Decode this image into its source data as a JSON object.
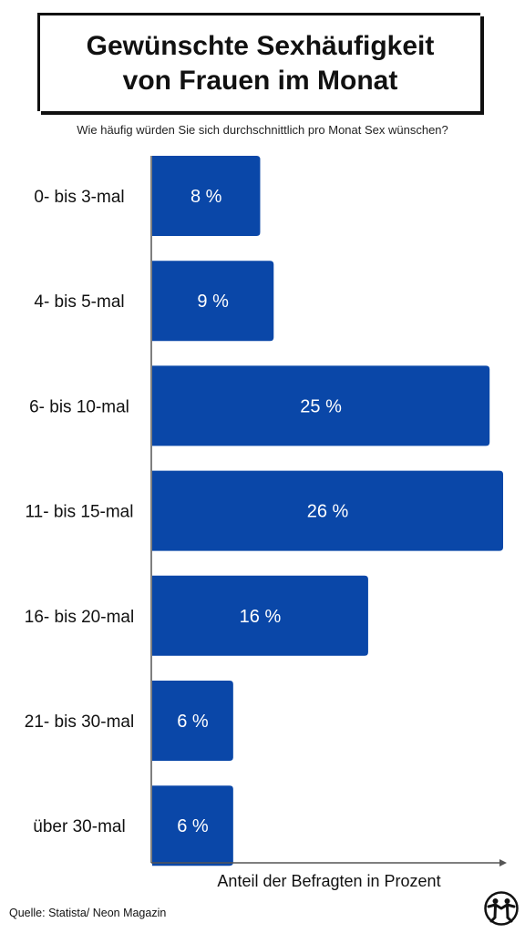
{
  "title_lines": [
    "Gewünschte Sexhäufigkeit",
    "von Frauen im Monat"
  ],
  "subtitle": "Wie häufig würden Sie sich durchschnittlich pro Monat Sex wünschen?",
  "source": "Quelle: Statista/ Neon Magazin",
  "colors": {
    "bar": "#0a47a8",
    "axis": "#555555"
  },
  "chart_data": {
    "type": "bar",
    "orientation": "horizontal",
    "title": "Gewünschte Sexhäufigkeit von Frauen im Monat",
    "subtitle": "Wie häufig würden Sie sich durchschnittlich pro Monat Sex wünschen?",
    "xlabel": "Anteil der Befragten in Prozent",
    "ylabel": "",
    "xlim": [
      0,
      26
    ],
    "grid": false,
    "categories": [
      "0- bis 3-mal",
      "4- bis 5-mal",
      "6- bis 10-mal",
      "11- bis 15-mal",
      "16- bis 20-mal",
      "21- bis 30-mal",
      "über 30-mal"
    ],
    "values": [
      8,
      9,
      25,
      26,
      16,
      6,
      6
    ],
    "data_labels": [
      "8 %",
      "9 %",
      "25 %",
      "26 %",
      "16 %",
      "6 %",
      "6 %"
    ]
  }
}
